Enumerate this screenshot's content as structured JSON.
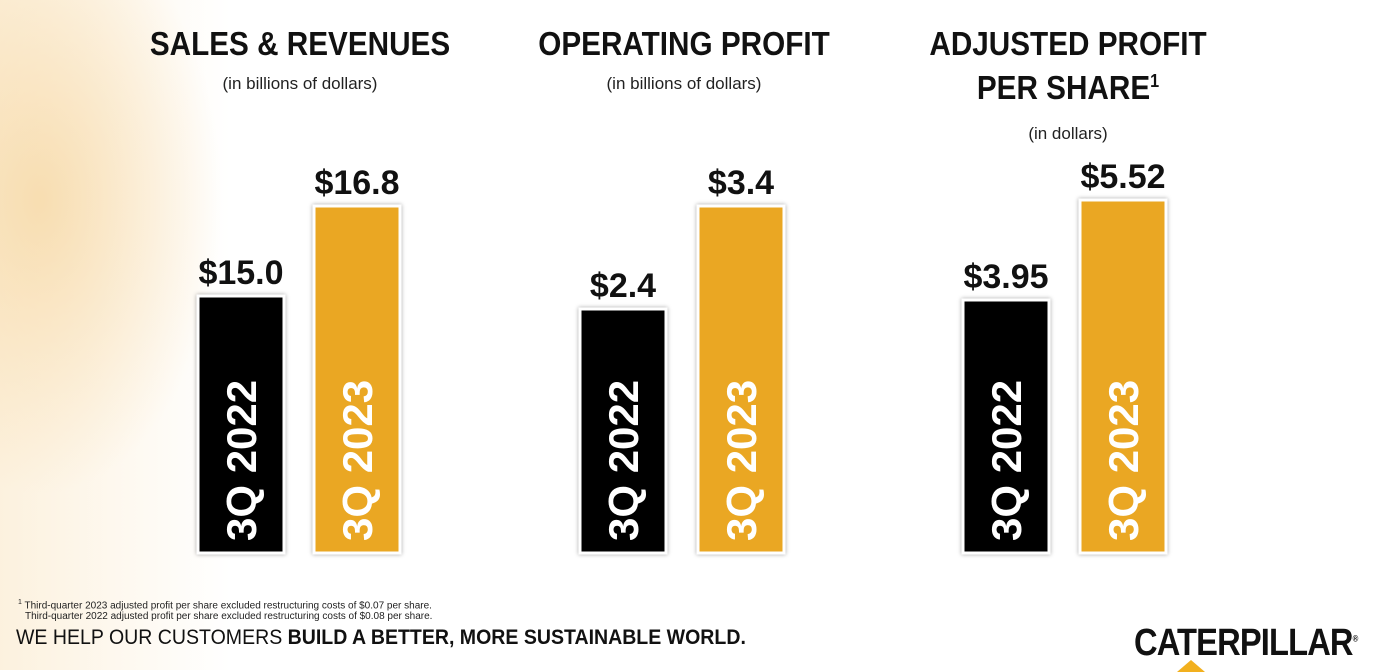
{
  "colors": {
    "bar_2022": "#000000",
    "bar_2023": "#EAA723",
    "bar_outline": "#ffffff",
    "logo_accent": "#F2B01E"
  },
  "panels": [
    {
      "title_line1": "SALES & REVENUES",
      "title_line2": "",
      "title_sup": "",
      "subtitle": "(in billions of dollars)"
    },
    {
      "title_line1": "OPERATING PROFIT",
      "title_line2": "",
      "title_sup": "",
      "subtitle": "(in billions of dollars)"
    },
    {
      "title_line1": "ADJUSTED PROFIT",
      "title_line2": "PER SHARE",
      "title_sup": "1",
      "subtitle": "(in dollars)"
    }
  ],
  "chart_data": [
    {
      "type": "bar",
      "title": "SALES & REVENUES",
      "subtitle": "(in billions of dollars)",
      "categories": [
        "3Q 2022",
        "3Q 2023"
      ],
      "values": [
        15.0,
        16.8
      ],
      "value_labels": [
        "$15.0",
        "$16.8"
      ],
      "colors": [
        "#000000",
        "#EAA723"
      ]
    },
    {
      "type": "bar",
      "title": "OPERATING PROFIT",
      "subtitle": "(in billions of dollars)",
      "categories": [
        "3Q 2022",
        "3Q 2023"
      ],
      "values": [
        2.4,
        3.4
      ],
      "value_labels": [
        "$2.4",
        "$3.4"
      ],
      "colors": [
        "#000000",
        "#EAA723"
      ]
    },
    {
      "type": "bar",
      "title": "ADJUSTED PROFIT PER SHARE",
      "subtitle": "(in dollars)",
      "categories": [
        "3Q 2022",
        "3Q 2023"
      ],
      "values": [
        3.95,
        5.52
      ],
      "value_labels": [
        "$3.95",
        "$5.52"
      ],
      "colors": [
        "#000000",
        "#EAA723"
      ]
    }
  ],
  "footnotes": {
    "line1_sup": "1",
    "line1": " Third-quarter 2023 adjusted profit per share excluded restructuring costs of $0.07 per share.",
    "line2": "Third-quarter 2022 adjusted profit per share excluded restructuring costs of $0.08 per share."
  },
  "tagline": {
    "normal": "WE HELP OUR CUSTOMERS ",
    "bold": "BUILD A BETTER, MORE SUSTAINABLE WORLD."
  },
  "logo": {
    "text": "CATERPILLAR",
    "reg": "®"
  }
}
